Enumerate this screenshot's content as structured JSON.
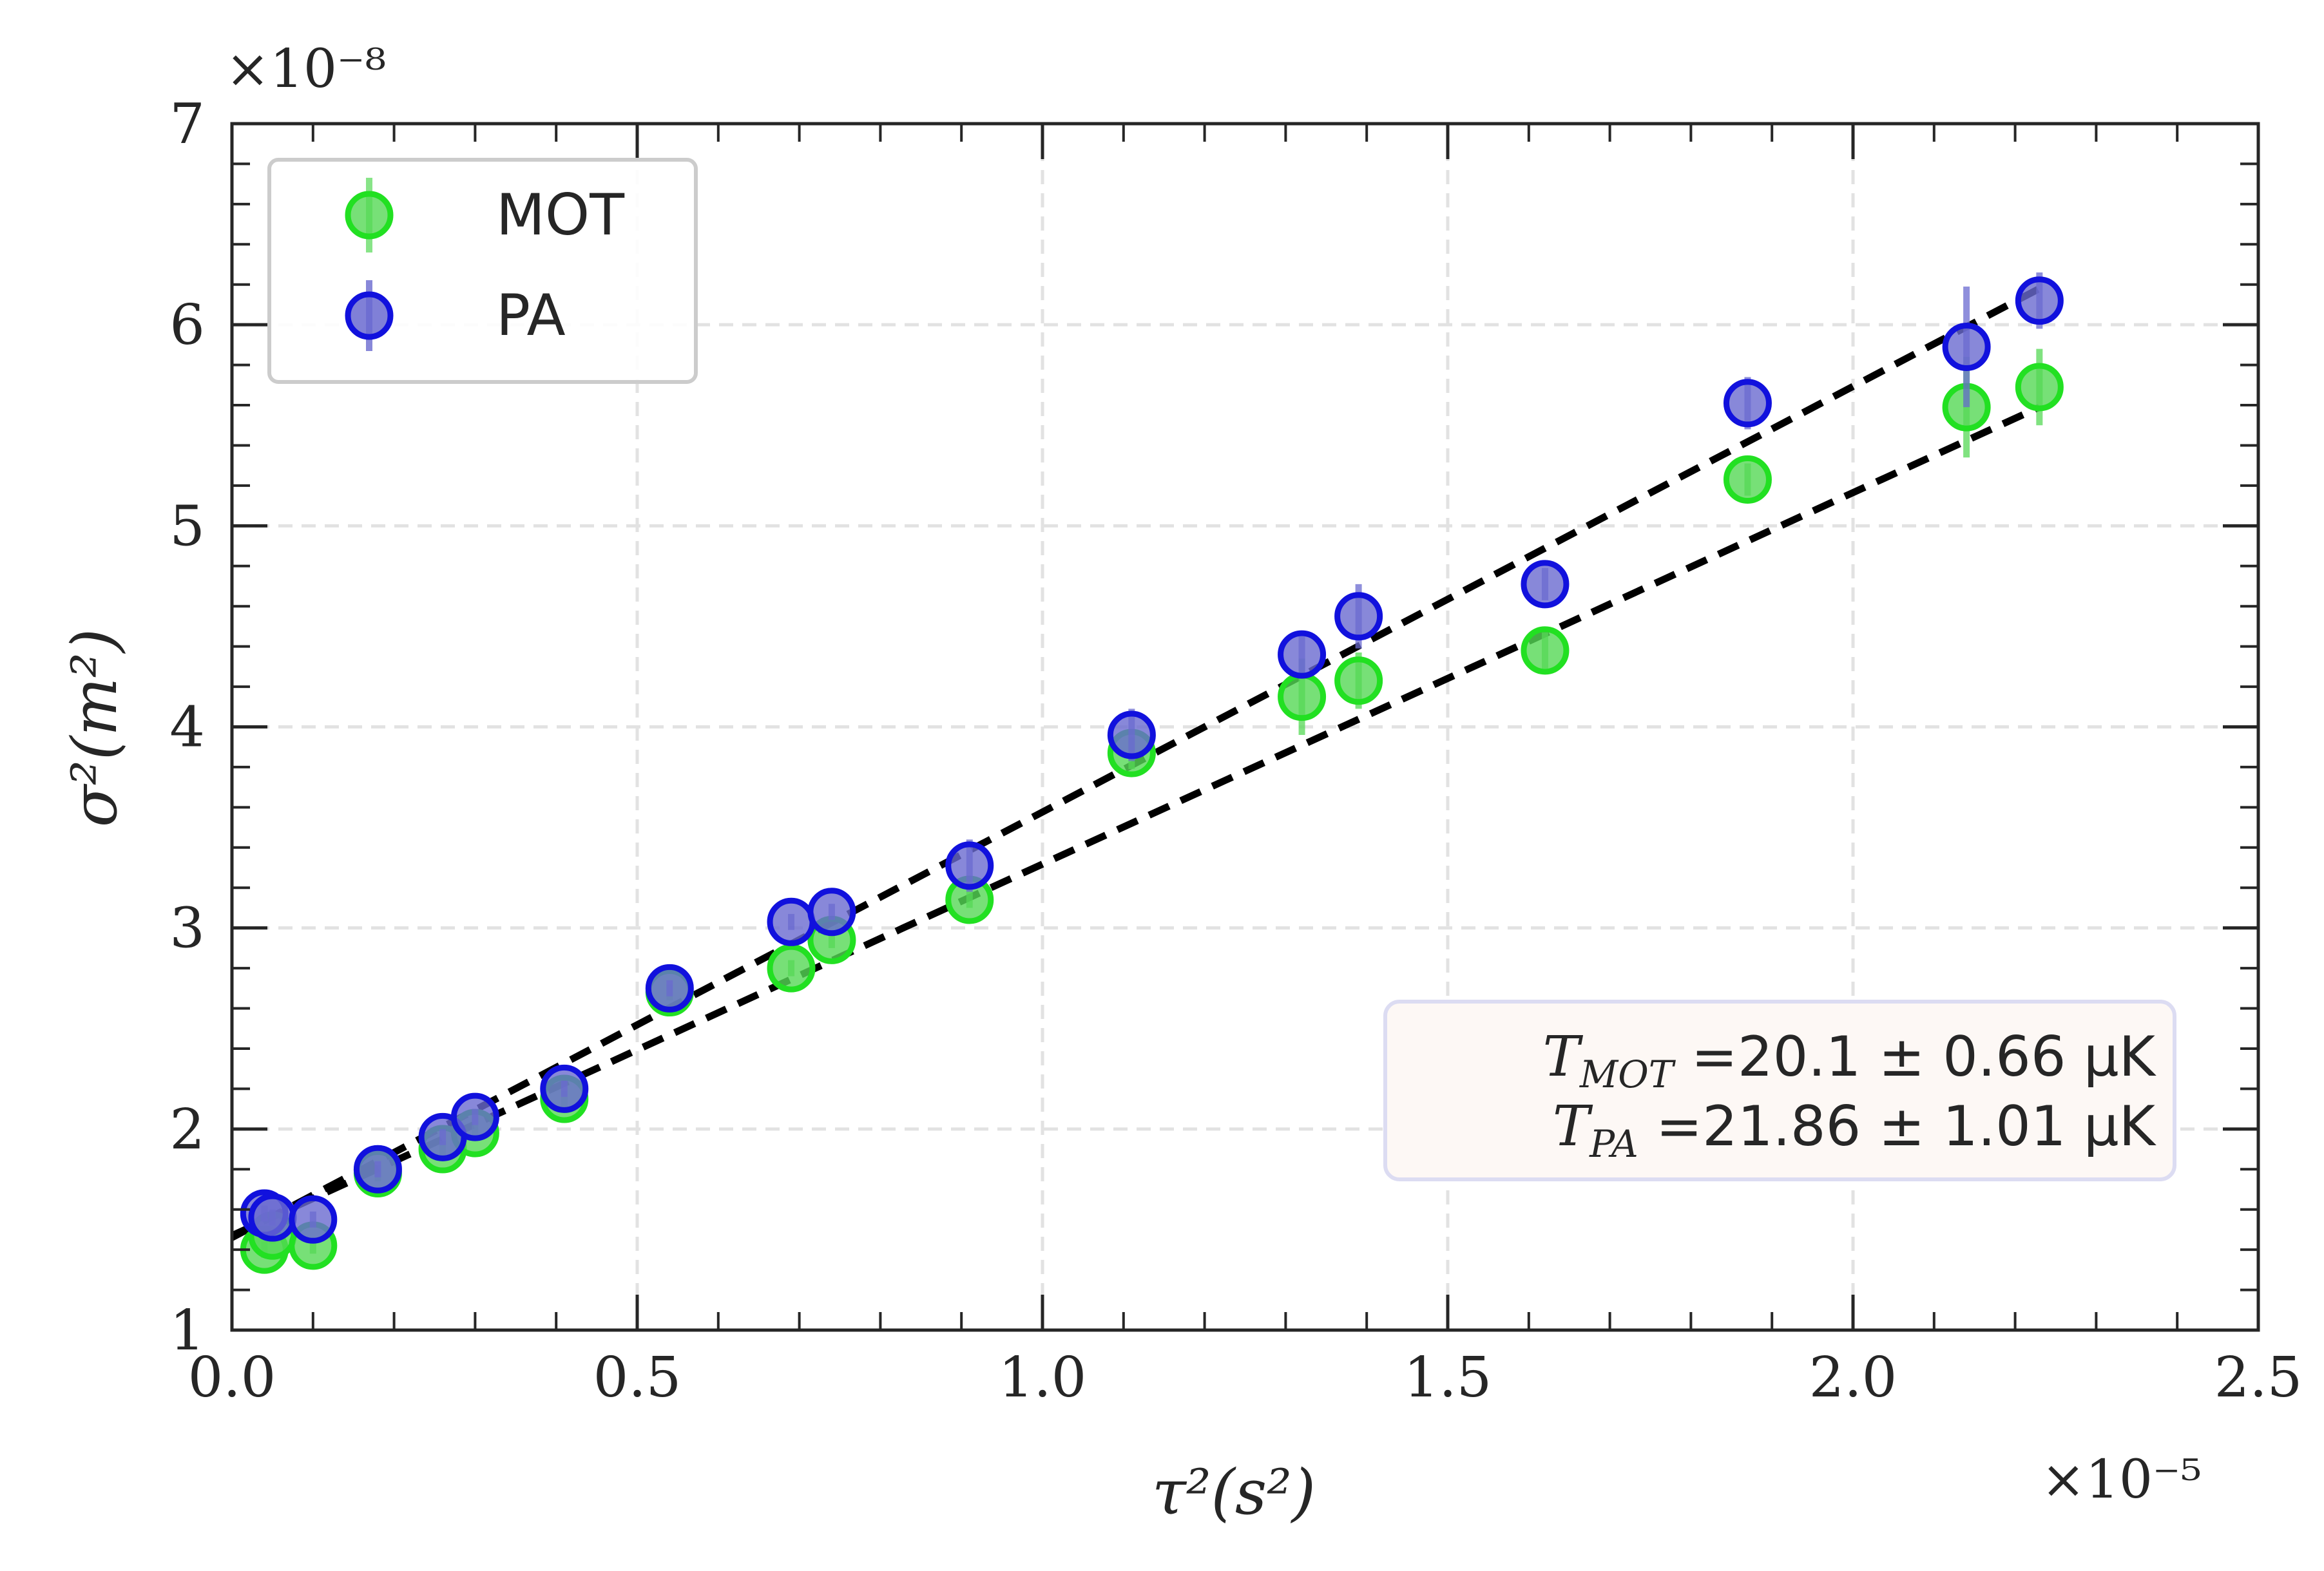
{
  "chart_data": {
    "type": "scatter",
    "title": "",
    "xlabel": "τ²(s²)",
    "ylabel": "σ²(m²)",
    "xlim": [
      0.0,
      2.5
    ],
    "ylim": [
      1,
      7
    ],
    "x_multiplier": "×10⁻⁵",
    "y_multiplier": "×10⁻⁸",
    "x_ticks": [
      0.0,
      0.5,
      1.0,
      1.5,
      2.0,
      2.5
    ],
    "x_tick_labels": [
      "0.0",
      "0.5",
      "1.0",
      "1.5",
      "2.0",
      "2.5"
    ],
    "y_ticks": [
      1,
      2,
      3,
      4,
      5,
      6,
      7
    ],
    "y_tick_labels": [
      "1",
      "2",
      "3",
      "4",
      "5",
      "6",
      "7"
    ],
    "grid": true,
    "legend_position": "top-left",
    "series": [
      {
        "name": "MOT",
        "color": "#22e022",
        "fill": "#55d855",
        "x": [
          0.04,
          0.05,
          0.1,
          0.18,
          0.26,
          0.3,
          0.41,
          0.54,
          0.69,
          0.74,
          0.91,
          1.11,
          1.32,
          1.39,
          1.62,
          1.87,
          2.14,
          2.23
        ],
        "y": [
          1.4,
          1.47,
          1.42,
          1.78,
          1.9,
          1.98,
          2.15,
          2.68,
          2.8,
          2.94,
          3.14,
          3.87,
          4.15,
          4.23,
          4.38,
          5.23,
          5.59,
          5.69
        ],
        "yerr": [
          0.04,
          0.04,
          0.04,
          0.04,
          0.04,
          0.04,
          0.04,
          0.04,
          0.04,
          0.04,
          0.04,
          0.08,
          0.19,
          0.14,
          0.09,
          0.08,
          0.25,
          0.19
        ],
        "fit": {
          "x": [
            0.0,
            2.23
          ],
          "y": [
            1.47,
            5.59
          ]
        }
      },
      {
        "name": "PA",
        "color": "#1111dd",
        "fill": "#6a6ad0",
        "x": [
          0.04,
          0.05,
          0.1,
          0.18,
          0.26,
          0.3,
          0.41,
          0.54,
          0.69,
          0.74,
          0.91,
          1.11,
          1.32,
          1.39,
          1.62,
          1.87,
          2.14,
          2.23
        ],
        "y": [
          1.58,
          1.56,
          1.55,
          1.8,
          1.96,
          2.06,
          2.2,
          2.7,
          3.03,
          3.08,
          3.31,
          3.96,
          4.36,
          4.55,
          4.71,
          5.61,
          5.89,
          6.12
        ],
        "yerr": [
          0.04,
          0.04,
          0.04,
          0.04,
          0.04,
          0.04,
          0.04,
          0.04,
          0.04,
          0.04,
          0.13,
          0.13,
          0.09,
          0.16,
          0.08,
          0.13,
          0.3,
          0.14
        ],
        "fit": {
          "x": [
            0.0,
            2.23
          ],
          "y": [
            1.46,
            6.18
          ]
        }
      }
    ],
    "annotations": [
      {
        "label": "T",
        "subscript": "MOT",
        "text": " =20.1 ± 0.66 μK"
      },
      {
        "label": "T",
        "subscript": "PA",
        "text": " =21.86 ± 1.01 μK"
      }
    ]
  }
}
